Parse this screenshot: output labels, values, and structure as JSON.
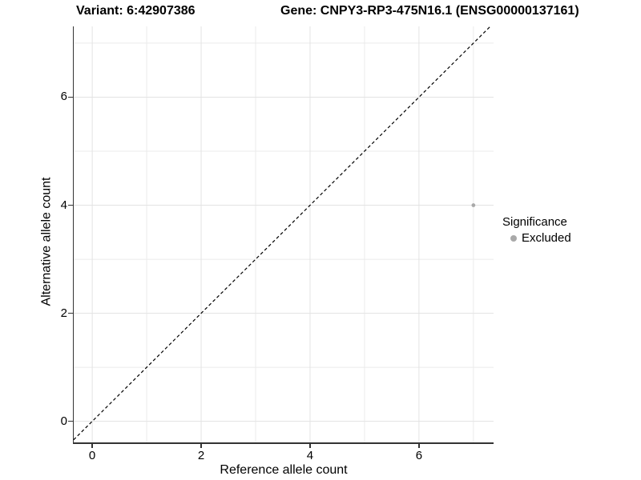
{
  "chart_data": {
    "type": "scatter",
    "titles": {
      "variant": "Variant: 6:42907386",
      "gene": "Gene: CNPY3-RP3-475N16.1 (ENSG00000137161)"
    },
    "xlabel": "Reference allele count",
    "ylabel": "Alternative allele count",
    "xlim": [
      -0.34,
      7.37
    ],
    "ylim": [
      -0.39,
      7.31
    ],
    "x_ticks": [
      0,
      2,
      4,
      6
    ],
    "y_ticks": [
      0,
      2,
      4,
      6
    ],
    "x_minor_gridlines": [
      1,
      3,
      5,
      7
    ],
    "y_minor_gridlines": [
      1,
      3,
      5,
      7
    ],
    "grid": true,
    "identity_line": {
      "style": "dashed",
      "color": "#000000",
      "from": -1,
      "to": 9
    },
    "series": [
      {
        "name": "Excluded",
        "color": "#a9a9a9",
        "point_radius": 2.4,
        "points": [
          {
            "x": 7,
            "y": 4
          }
        ]
      }
    ],
    "legend": {
      "title": "Significance",
      "position": "right",
      "entries": [
        {
          "label": "Excluded",
          "color": "#a9a9a9"
        }
      ]
    },
    "colors": {
      "axis_line": "#333333",
      "tick_mark": "#333333",
      "grid_major": "#e3e3e3",
      "grid_minor": "#ebebeb",
      "text": "#000000"
    }
  }
}
